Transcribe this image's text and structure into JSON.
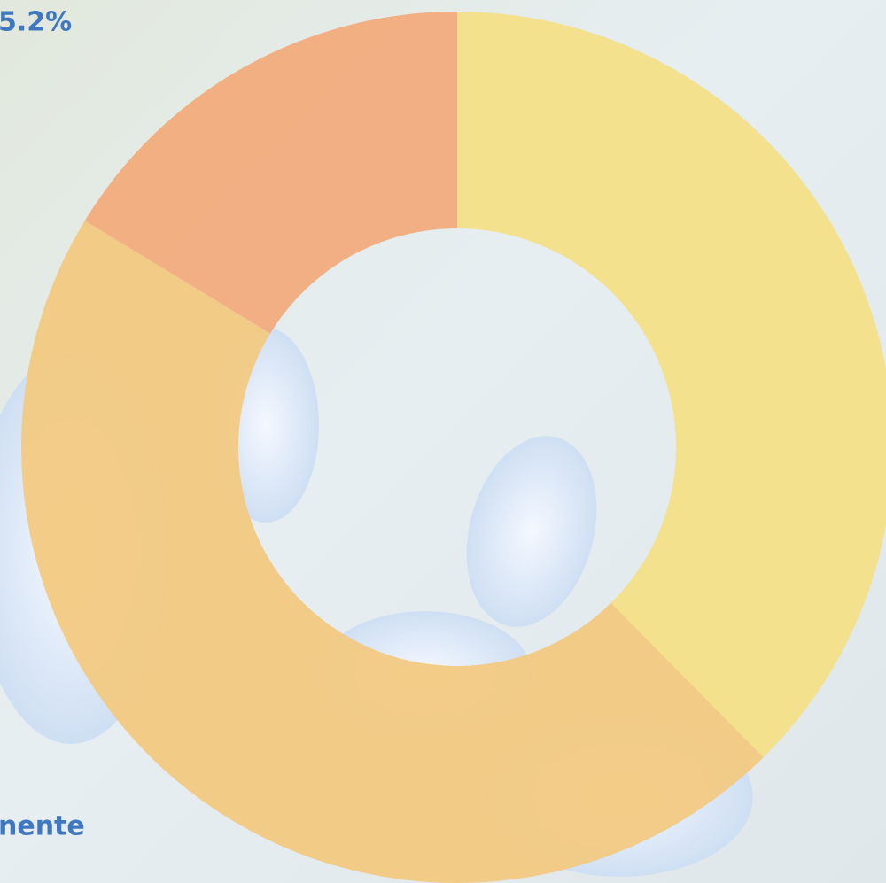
{
  "chart_data": {
    "type": "donut",
    "categories": [
      null,
      null,
      null
    ],
    "values": [
      37.6,
      46.1,
      16.3
    ],
    "colors": [
      "#f4df84",
      "#f3c97e",
      "#f2a97a"
    ],
    "annotations": [
      "5.2%",
      "nente"
    ]
  }
}
